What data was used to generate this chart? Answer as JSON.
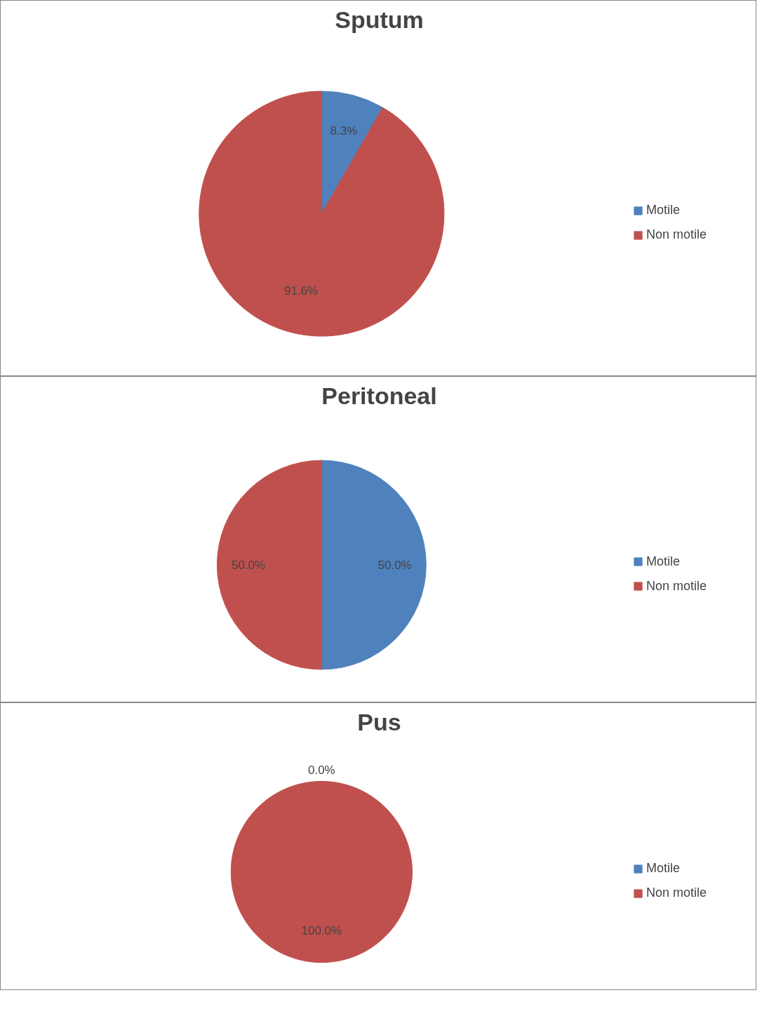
{
  "chart_data": [
    {
      "type": "pie",
      "title": "Sputum",
      "categories": [
        "Motile",
        "Non motile"
      ],
      "values": [
        8.3,
        91.6
      ],
      "colors": [
        "#4f81bd",
        "#c0504d"
      ],
      "value_labels": [
        "8.3%",
        "91.6%"
      ],
      "legend": "right"
    },
    {
      "type": "pie",
      "title": "Peritoneal",
      "categories": [
        "Motile",
        "Non motile"
      ],
      "values": [
        50.0,
        50.0
      ],
      "colors": [
        "#4f81bd",
        "#c0504d"
      ],
      "value_labels": [
        "50.0%",
        "50.0%"
      ],
      "legend": "right"
    },
    {
      "type": "pie",
      "title": "Pus",
      "categories": [
        "Motile",
        "Non motile"
      ],
      "values": [
        0.0,
        100.0
      ],
      "colors": [
        "#4f81bd",
        "#c0504d"
      ],
      "value_labels": [
        "0.0%",
        "100.0%"
      ],
      "legend": "right"
    }
  ]
}
